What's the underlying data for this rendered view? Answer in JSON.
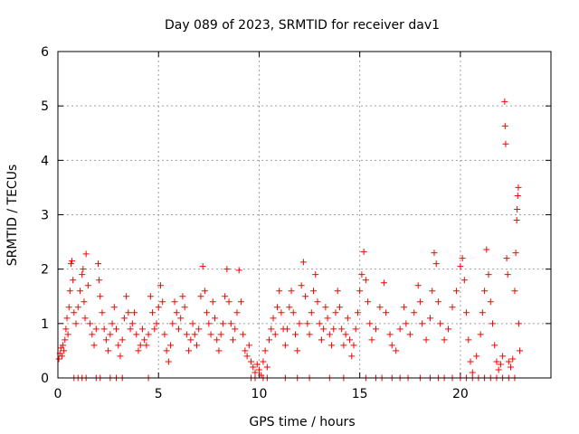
{
  "chart_data": {
    "type": "scatter",
    "title": "Day 089 of 2023, SRMTID for receiver dav1",
    "xlabel": "GPS time / hours",
    "ylabel": "SRMTID / TECUs",
    "xlim": [
      0,
      24.5
    ],
    "ylim": [
      0,
      6
    ],
    "xticks": [
      0,
      5,
      10,
      15,
      20
    ],
    "yticks": [
      0,
      1,
      2,
      3,
      4,
      5,
      6
    ],
    "grid": true,
    "marker": "plus",
    "color": "#ff0000",
    "series": [
      {
        "name": "dav1",
        "points": [
          [
            0.05,
            0.35
          ],
          [
            0.1,
            0.45
          ],
          [
            0.15,
            0.55
          ],
          [
            0.2,
            0.4
          ],
          [
            0.25,
            0.6
          ],
          [
            0.3,
            0.5
          ],
          [
            0.35,
            0.7
          ],
          [
            0.4,
            0.9
          ],
          [
            0.45,
            1.1
          ],
          [
            0.5,
            0.8
          ],
          [
            0.55,
            1.3
          ],
          [
            0.6,
            1.6
          ],
          [
            0.65,
            2.1
          ],
          [
            0.7,
            2.15
          ],
          [
            0.75,
            1.8
          ],
          [
            0.8,
            1.2
          ],
          [
            0.9,
            1.0
          ],
          [
            1.0,
            1.3
          ],
          [
            1.1,
            1.6
          ],
          [
            1.2,
            1.9
          ],
          [
            1.25,
            2.0
          ],
          [
            1.3,
            1.4
          ],
          [
            1.35,
            1.1
          ],
          [
            1.4,
            2.28
          ],
          [
            1.5,
            1.7
          ],
          [
            1.6,
            1.0
          ],
          [
            1.7,
            0.8
          ],
          [
            1.8,
            0.6
          ],
          [
            1.9,
            0.9
          ],
          [
            2.0,
            2.1
          ],
          [
            2.05,
            1.8
          ],
          [
            2.1,
            1.5
          ],
          [
            2.2,
            1.2
          ],
          [
            2.3,
            0.9
          ],
          [
            2.4,
            0.7
          ],
          [
            2.5,
            0.5
          ],
          [
            2.6,
            0.8
          ],
          [
            2.7,
            1.0
          ],
          [
            2.8,
            1.3
          ],
          [
            2.9,
            0.9
          ],
          [
            3.0,
            0.6
          ],
          [
            3.1,
            0.4
          ],
          [
            3.2,
            0.7
          ],
          [
            3.3,
            1.1
          ],
          [
            3.4,
            1.5
          ],
          [
            3.5,
            1.2
          ],
          [
            3.6,
            0.9
          ],
          [
            3.7,
            1.0
          ],
          [
            3.8,
            1.2
          ],
          [
            3.9,
            0.8
          ],
          [
            4.0,
            0.5
          ],
          [
            4.1,
            0.6
          ],
          [
            4.2,
            0.9
          ],
          [
            4.3,
            0.7
          ],
          [
            4.4,
            0.6
          ],
          [
            4.5,
            0.8
          ],
          [
            4.6,
            1.5
          ],
          [
            4.7,
            1.2
          ],
          [
            4.8,
            0.9
          ],
          [
            4.9,
            1.0
          ],
          [
            5.0,
            1.3
          ],
          [
            5.1,
            1.7
          ],
          [
            5.2,
            1.4
          ],
          [
            5.3,
            0.8
          ],
          [
            5.4,
            0.5
          ],
          [
            5.5,
            0.3
          ],
          [
            5.6,
            0.6
          ],
          [
            5.7,
            1.0
          ],
          [
            5.8,
            1.4
          ],
          [
            5.9,
            1.2
          ],
          [
            6.0,
            0.9
          ],
          [
            6.1,
            1.1
          ],
          [
            6.2,
            1.5
          ],
          [
            6.3,
            1.3
          ],
          [
            6.4,
            0.8
          ],
          [
            6.5,
            0.5
          ],
          [
            6.6,
            0.7
          ],
          [
            6.7,
            1.0
          ],
          [
            6.8,
            0.8
          ],
          [
            6.9,
            0.6
          ],
          [
            7.0,
            0.9
          ],
          [
            7.1,
            1.5
          ],
          [
            7.2,
            2.05
          ],
          [
            7.3,
            1.6
          ],
          [
            7.4,
            1.2
          ],
          [
            7.5,
            1.0
          ],
          [
            7.6,
            0.8
          ],
          [
            7.7,
            1.4
          ],
          [
            7.8,
            1.1
          ],
          [
            7.9,
            0.7
          ],
          [
            8.0,
            0.5
          ],
          [
            8.1,
            0.8
          ],
          [
            8.2,
            1.0
          ],
          [
            8.3,
            1.5
          ],
          [
            8.4,
            2.0
          ],
          [
            8.5,
            1.4
          ],
          [
            8.6,
            1.0
          ],
          [
            8.7,
            0.7
          ],
          [
            8.8,
            0.9
          ],
          [
            8.9,
            1.2
          ],
          [
            9.0,
            1.98
          ],
          [
            9.1,
            1.4
          ],
          [
            9.2,
            0.8
          ],
          [
            9.3,
            0.5
          ],
          [
            9.4,
            0.4
          ],
          [
            9.5,
            0.6
          ],
          [
            9.6,
            0.3
          ],
          [
            9.7,
            0.2
          ],
          [
            9.8,
            0.1
          ],
          [
            9.9,
            0.25
          ],
          [
            10.0,
            0.15
          ],
          [
            10.1,
            0.05
          ],
          [
            10.2,
            0.3
          ],
          [
            10.3,
            0.5
          ],
          [
            10.4,
            0.2
          ],
          [
            10.5,
            0.7
          ],
          [
            10.6,
            0.9
          ],
          [
            10.7,
            1.1
          ],
          [
            10.8,
            0.8
          ],
          [
            10.9,
            1.3
          ],
          [
            11.0,
            1.6
          ],
          [
            11.1,
            1.2
          ],
          [
            11.2,
            0.9
          ],
          [
            11.3,
            0.6
          ],
          [
            11.4,
            0.9
          ],
          [
            11.5,
            1.3
          ],
          [
            11.6,
            1.6
          ],
          [
            11.7,
            1.2
          ],
          [
            11.8,
            0.8
          ],
          [
            11.9,
            0.5
          ],
          [
            12.0,
            1.0
          ],
          [
            12.1,
            1.7
          ],
          [
            12.2,
            2.13
          ],
          [
            12.3,
            1.5
          ],
          [
            12.4,
            1.0
          ],
          [
            12.5,
            0.8
          ],
          [
            12.6,
            1.2
          ],
          [
            12.7,
            1.6
          ],
          [
            12.8,
            1.9
          ],
          [
            12.9,
            1.4
          ],
          [
            13.0,
            1.0
          ],
          [
            13.1,
            0.7
          ],
          [
            13.2,
            0.9
          ],
          [
            13.3,
            1.3
          ],
          [
            13.4,
            1.1
          ],
          [
            13.5,
            0.8
          ],
          [
            13.6,
            0.6
          ],
          [
            13.7,
            0.9
          ],
          [
            13.8,
            1.2
          ],
          [
            13.9,
            1.6
          ],
          [
            14.0,
            1.3
          ],
          [
            14.1,
            0.9
          ],
          [
            14.2,
            0.6
          ],
          [
            14.3,
            0.8
          ],
          [
            14.4,
            1.1
          ],
          [
            14.5,
            0.7
          ],
          [
            14.6,
            0.4
          ],
          [
            14.7,
            0.6
          ],
          [
            14.8,
            0.9
          ],
          [
            14.9,
            1.2
          ],
          [
            15.0,
            1.6
          ],
          [
            15.1,
            1.9
          ],
          [
            15.2,
            2.32
          ],
          [
            15.3,
            1.8
          ],
          [
            15.4,
            1.4
          ],
          [
            15.5,
            1.0
          ],
          [
            15.6,
            0.7
          ],
          [
            15.8,
            0.9
          ],
          [
            16.0,
            1.3
          ],
          [
            16.2,
            1.75
          ],
          [
            16.3,
            1.2
          ],
          [
            16.5,
            0.8
          ],
          [
            16.6,
            0.6
          ],
          [
            16.8,
            0.5
          ],
          [
            17.0,
            0.9
          ],
          [
            17.2,
            1.3
          ],
          [
            17.3,
            1.0
          ],
          [
            17.5,
            0.8
          ],
          [
            17.7,
            1.2
          ],
          [
            17.9,
            1.7
          ],
          [
            18.0,
            1.4
          ],
          [
            18.1,
            1.0
          ],
          [
            18.3,
            0.7
          ],
          [
            18.5,
            1.1
          ],
          [
            18.6,
            1.6
          ],
          [
            18.7,
            2.3
          ],
          [
            18.8,
            2.1
          ],
          [
            18.9,
            1.4
          ],
          [
            19.0,
            1.0
          ],
          [
            19.2,
            0.7
          ],
          [
            19.4,
            0.9
          ],
          [
            19.6,
            1.3
          ],
          [
            19.8,
            1.6
          ],
          [
            20.0,
            2.05
          ],
          [
            20.1,
            2.2
          ],
          [
            20.2,
            1.8
          ],
          [
            20.3,
            1.2
          ],
          [
            20.4,
            0.7
          ],
          [
            20.5,
            0.3
          ],
          [
            20.6,
            0.1
          ],
          [
            20.8,
            0.4
          ],
          [
            21.0,
            0.8
          ],
          [
            21.1,
            1.2
          ],
          [
            21.2,
            1.6
          ],
          [
            21.3,
            2.36
          ],
          [
            21.4,
            1.9
          ],
          [
            21.5,
            1.4
          ],
          [
            21.6,
            1.0
          ],
          [
            21.7,
            0.6
          ],
          [
            21.8,
            0.3
          ],
          [
            21.9,
            0.15
          ],
          [
            22.0,
            0.25
          ],
          [
            22.1,
            0.4
          ],
          [
            22.2,
            5.08
          ],
          [
            22.22,
            4.63
          ],
          [
            22.25,
            4.3
          ],
          [
            22.3,
            2.2
          ],
          [
            22.35,
            1.9
          ],
          [
            22.4,
            0.3
          ],
          [
            22.5,
            0.2
          ],
          [
            22.6,
            0.35
          ],
          [
            22.7,
            1.6
          ],
          [
            22.75,
            2.3
          ],
          [
            22.8,
            2.9
          ],
          [
            22.82,
            3.1
          ],
          [
            22.85,
            3.35
          ],
          [
            22.88,
            3.5
          ],
          [
            22.9,
            1.0
          ],
          [
            22.95,
            0.5
          ],
          [
            0.8,
            0.0
          ],
          [
            1.0,
            0.0
          ],
          [
            1.2,
            0.0
          ],
          [
            1.4,
            0.0
          ],
          [
            1.9,
            0.0
          ],
          [
            2.1,
            0.0
          ],
          [
            2.6,
            0.0
          ],
          [
            2.9,
            0.0
          ],
          [
            3.2,
            0.0
          ],
          [
            4.5,
            0.0
          ],
          [
            9.6,
            0.0
          ],
          [
            9.8,
            0.0
          ],
          [
            10.2,
            0.0
          ],
          [
            10.4,
            0.0
          ],
          [
            11.3,
            0.0
          ],
          [
            11.9,
            0.0
          ],
          [
            12.5,
            0.0
          ],
          [
            13.5,
            0.0
          ],
          [
            14.2,
            0.0
          ],
          [
            15.3,
            0.0
          ],
          [
            15.8,
            0.0
          ],
          [
            16.1,
            0.0
          ],
          [
            16.6,
            0.0
          ],
          [
            17.0,
            0.0
          ],
          [
            17.4,
            0.0
          ],
          [
            18.0,
            0.0
          ],
          [
            18.5,
            0.0
          ],
          [
            18.9,
            0.0
          ],
          [
            19.2,
            0.0
          ],
          [
            19.6,
            0.0
          ],
          [
            20.0,
            0.0
          ],
          [
            20.3,
            0.0
          ],
          [
            20.6,
            0.0
          ],
          [
            20.9,
            0.0
          ],
          [
            21.2,
            0.0
          ],
          [
            21.5,
            0.0
          ],
          [
            21.8,
            0.0
          ],
          [
            22.1,
            0.0
          ],
          [
            22.4,
            0.0
          ],
          [
            22.7,
            0.0
          ]
        ]
      }
    ]
  }
}
